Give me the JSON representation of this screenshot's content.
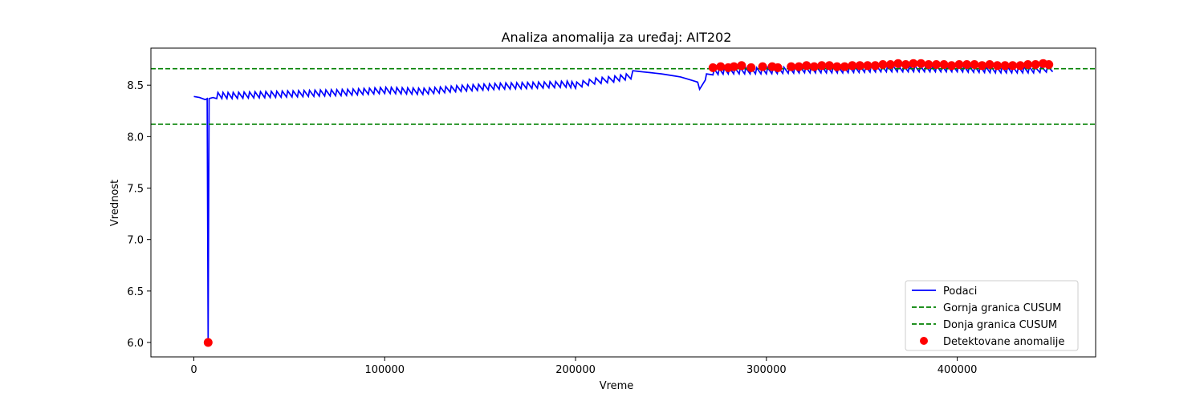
{
  "chart_data": {
    "type": "line",
    "title": "Analiza anomalija za uređaj: AIT202",
    "xlabel": "Vreme",
    "ylabel": "Vrednost",
    "xlim": [
      -22500,
      472500
    ],
    "ylim": [
      5.86,
      8.86
    ],
    "xticks": [
      0,
      100000,
      200000,
      300000,
      400000
    ],
    "yticks": [
      6.0,
      6.5,
      7.0,
      7.5,
      8.0,
      8.5
    ],
    "xtick_labels": [
      "0",
      "100000",
      "200000",
      "300000",
      "400000"
    ],
    "ytick_labels": [
      "6.0",
      "6.5",
      "7.0",
      "7.5",
      "8.0",
      "8.5"
    ],
    "grid": false,
    "legend_position": "lower-right",
    "colors": {
      "data": "#0000ff",
      "threshold": "#008000",
      "anomaly": "#ff0000"
    },
    "series": [
      {
        "name": "Podaci",
        "kind": "line",
        "x": [
          0,
          3000,
          6000,
          7000,
          7500,
          8000,
          10000,
          12000,
          20000,
          40000,
          60000,
          80000,
          100000,
          120000,
          140000,
          160000,
          180000,
          195000,
          200000,
          210000,
          220000,
          229000,
          230000,
          245000,
          255000,
          264000,
          265000,
          268000,
          272000,
          280000,
          300000,
          320000,
          340000,
          360000,
          380000,
          400000,
          420000,
          440000,
          450000
        ],
        "y": [
          8.39,
          8.38,
          8.36,
          8.37,
          6.0,
          8.37,
          8.38,
          8.37,
          8.37,
          8.38,
          8.39,
          8.4,
          8.42,
          8.41,
          8.44,
          8.46,
          8.47,
          8.48,
          8.47,
          8.51,
          8.53,
          8.56,
          8.64,
          8.61,
          8.58,
          8.53,
          8.46,
          8.55,
          8.6,
          8.61,
          8.61,
          8.62,
          8.62,
          8.63,
          8.63,
          8.63,
          8.62,
          8.62,
          8.63
        ]
      },
      {
        "name": "Gornja granica CUSUM",
        "kind": "hline",
        "y": 8.66
      },
      {
        "name": "Donja granica CUSUM",
        "kind": "hline",
        "y": 8.12
      },
      {
        "name": "Detektovane anomalije",
        "kind": "scatter",
        "x": [
          7500,
          272000,
          276000,
          280000,
          283000,
          287000,
          292000,
          298000,
          303000,
          306000,
          313000,
          317000,
          321000,
          325000,
          329000,
          333000,
          337000,
          341000,
          345000,
          349000,
          353000,
          357000,
          361000,
          365000,
          369000,
          373000,
          377000,
          381000,
          385000,
          389000,
          393000,
          397000,
          401000,
          405000,
          409000,
          413000,
          417000,
          421000,
          425000,
          429000,
          433000,
          437000,
          441000,
          445000,
          448000
        ],
        "y": [
          6.0,
          8.67,
          8.68,
          8.67,
          8.68,
          8.69,
          8.67,
          8.68,
          8.68,
          8.67,
          8.68,
          8.68,
          8.69,
          8.68,
          8.69,
          8.69,
          8.68,
          8.68,
          8.69,
          8.69,
          8.69,
          8.69,
          8.7,
          8.7,
          8.71,
          8.7,
          8.71,
          8.71,
          8.7,
          8.7,
          8.7,
          8.69,
          8.7,
          8.7,
          8.7,
          8.69,
          8.7,
          8.69,
          8.69,
          8.69,
          8.69,
          8.7,
          8.7,
          8.71,
          8.7
        ]
      }
    ]
  }
}
